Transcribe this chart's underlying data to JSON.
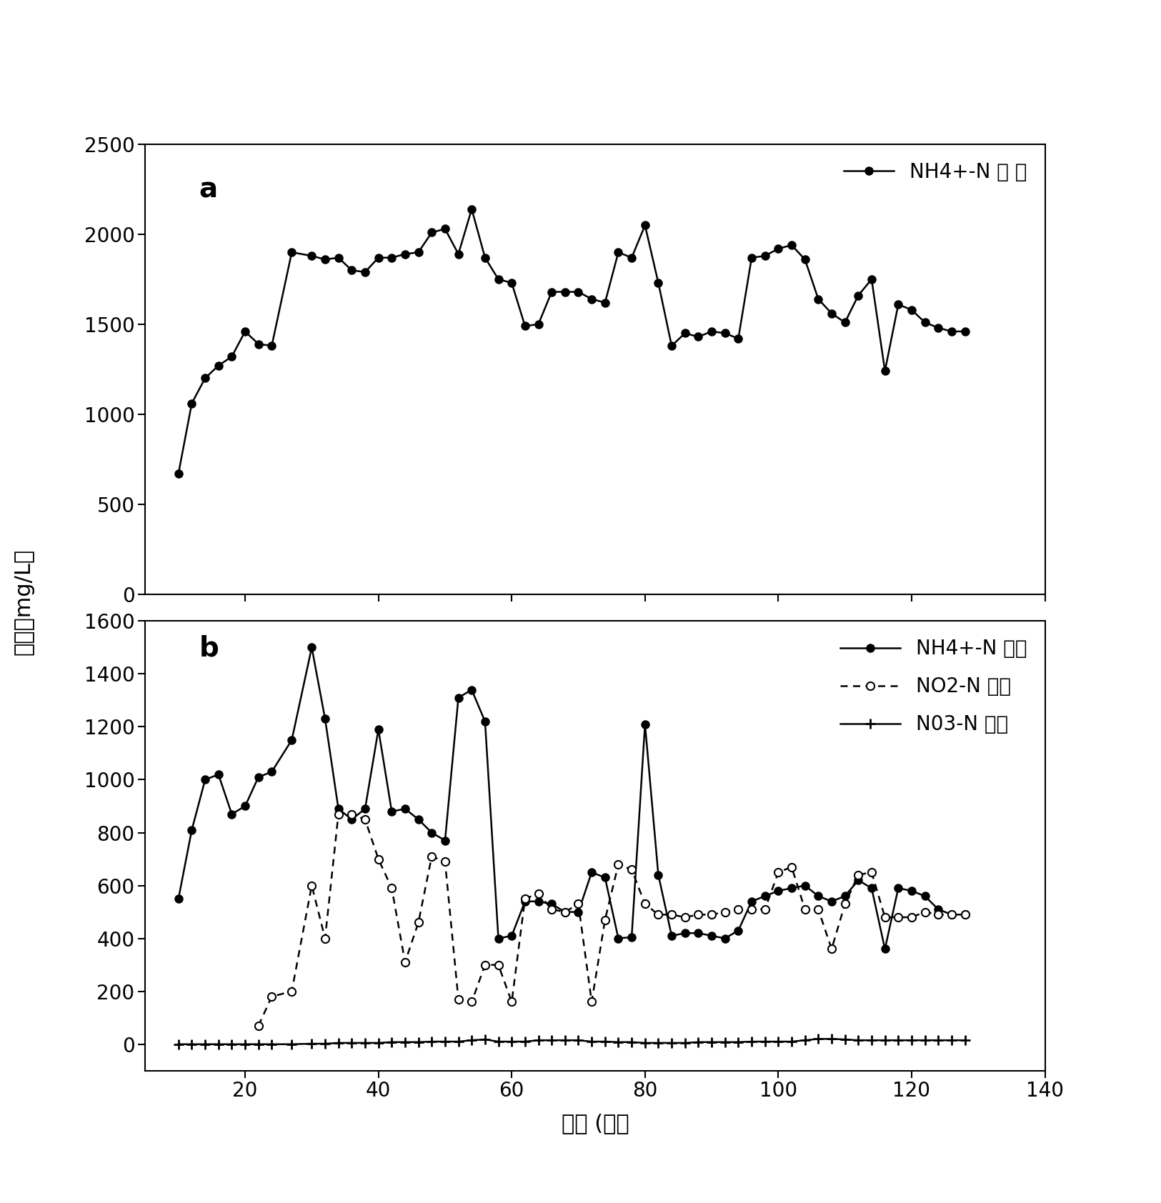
{
  "panel_a": {
    "label": "NH4+-N 进 水",
    "x": [
      10,
      12,
      14,
      16,
      18,
      20,
      22,
      24,
      27,
      30,
      32,
      34,
      36,
      38,
      40,
      42,
      44,
      46,
      48,
      50,
      52,
      54,
      56,
      58,
      60,
      62,
      64,
      66,
      68,
      70,
      72,
      74,
      76,
      78,
      80,
      82,
      84,
      86,
      88,
      90,
      92,
      94,
      96,
      98,
      100,
      102,
      104,
      106,
      108,
      110,
      112,
      114,
      116,
      118,
      120,
      122,
      124,
      126,
      128
    ],
    "y": [
      670,
      1060,
      1200,
      1270,
      1320,
      1460,
      1390,
      1380,
      1900,
      1880,
      1860,
      1870,
      1800,
      1790,
      1870,
      1870,
      1890,
      1900,
      2010,
      2030,
      1890,
      2140,
      1870,
      1750,
      1730,
      1490,
      1500,
      1680,
      1680,
      1680,
      1640,
      1620,
      1900,
      1870,
      2050,
      1730,
      1380,
      1450,
      1430,
      1460,
      1450,
      1420,
      1870,
      1880,
      1920,
      1940,
      1860,
      1640,
      1560,
      1510,
      1660,
      1750,
      1240,
      1610,
      1580,
      1510,
      1480,
      1460,
      1460
    ],
    "ylim": [
      0,
      2500
    ],
    "yticks": [
      0,
      500,
      1000,
      1500,
      2000,
      2500
    ],
    "panel_label": "a"
  },
  "panel_b": {
    "nh4_label": "NH4+-N 出水",
    "no2_label": "NO2-N 出水",
    "no3_label": "N03-N 出水",
    "nh4_x": [
      10,
      12,
      14,
      16,
      18,
      20,
      22,
      24,
      27,
      30,
      32,
      34,
      36,
      38,
      40,
      42,
      44,
      46,
      48,
      50,
      52,
      54,
      56,
      58,
      60,
      62,
      64,
      66,
      68,
      70,
      72,
      74,
      76,
      78,
      80,
      82,
      84,
      86,
      88,
      90,
      92,
      94,
      96,
      98,
      100,
      102,
      104,
      106,
      108,
      110,
      112,
      114,
      116,
      118,
      120,
      122,
      124,
      126,
      128
    ],
    "nh4_y": [
      550,
      810,
      1000,
      1020,
      870,
      900,
      1010,
      1030,
      1150,
      1500,
      1230,
      890,
      850,
      890,
      1190,
      880,
      890,
      850,
      800,
      770,
      1310,
      1340,
      1220,
      400,
      410,
      540,
      540,
      530,
      500,
      500,
      650,
      630,
      400,
      405,
      1210,
      640,
      410,
      420,
      420,
      410,
      400,
      430,
      540,
      560,
      580,
      590,
      600,
      560,
      540,
      560,
      620,
      590,
      360,
      590,
      580,
      560,
      510,
      490,
      490
    ],
    "no2_x": [
      22,
      24,
      27,
      30,
      32,
      34,
      36,
      38,
      40,
      42,
      44,
      46,
      48,
      50,
      52,
      54,
      56,
      58,
      60,
      62,
      64,
      66,
      68,
      70,
      72,
      74,
      76,
      78,
      80,
      82,
      84,
      86,
      88,
      90,
      92,
      94,
      96,
      98,
      100,
      102,
      104,
      106,
      108,
      110,
      112,
      114,
      116,
      118,
      120,
      122,
      124,
      126,
      128
    ],
    "no2_y": [
      70,
      180,
      200,
      600,
      400,
      870,
      870,
      850,
      700,
      590,
      310,
      460,
      710,
      690,
      170,
      160,
      300,
      300,
      160,
      550,
      570,
      510,
      500,
      530,
      160,
      470,
      680,
      660,
      530,
      490,
      490,
      480,
      490,
      490,
      500,
      510,
      510,
      510,
      650,
      670,
      510,
      510,
      360,
      530,
      640,
      650,
      480,
      480,
      480,
      500,
      490,
      490,
      490
    ],
    "no3_x": [
      10,
      12,
      14,
      16,
      18,
      20,
      22,
      24,
      27,
      30,
      32,
      34,
      36,
      38,
      40,
      42,
      44,
      46,
      48,
      50,
      52,
      54,
      56,
      58,
      60,
      62,
      64,
      66,
      68,
      70,
      72,
      74,
      76,
      78,
      80,
      82,
      84,
      86,
      88,
      90,
      92,
      94,
      96,
      98,
      100,
      102,
      104,
      106,
      108,
      110,
      112,
      114,
      116,
      118,
      120,
      122,
      124,
      126,
      128
    ],
    "no3_y": [
      0,
      0,
      0,
      0,
      0,
      0,
      0,
      0,
      0,
      2,
      2,
      5,
      5,
      5,
      5,
      8,
      8,
      8,
      10,
      10,
      10,
      15,
      18,
      10,
      10,
      10,
      15,
      15,
      15,
      15,
      10,
      10,
      8,
      8,
      5,
      5,
      5,
      5,
      8,
      8,
      8,
      8,
      10,
      10,
      10,
      10,
      15,
      20,
      20,
      18,
      15,
      15,
      15,
      15,
      15,
      15,
      15,
      15,
      15
    ],
    "ylim": [
      -100,
      1600
    ],
    "yticks": [
      0,
      200,
      400,
      600,
      800,
      1000,
      1200,
      1400,
      1600
    ],
    "panel_label": "b"
  },
  "xlabel": "时间 (天）",
  "ylabel": "浓度（mg/L）",
  "xlim": [
    5,
    140
  ],
  "xticks": [
    20,
    40,
    60,
    80,
    100,
    120,
    140
  ],
  "line_color": "#000000",
  "bg_color": "#ffffff"
}
